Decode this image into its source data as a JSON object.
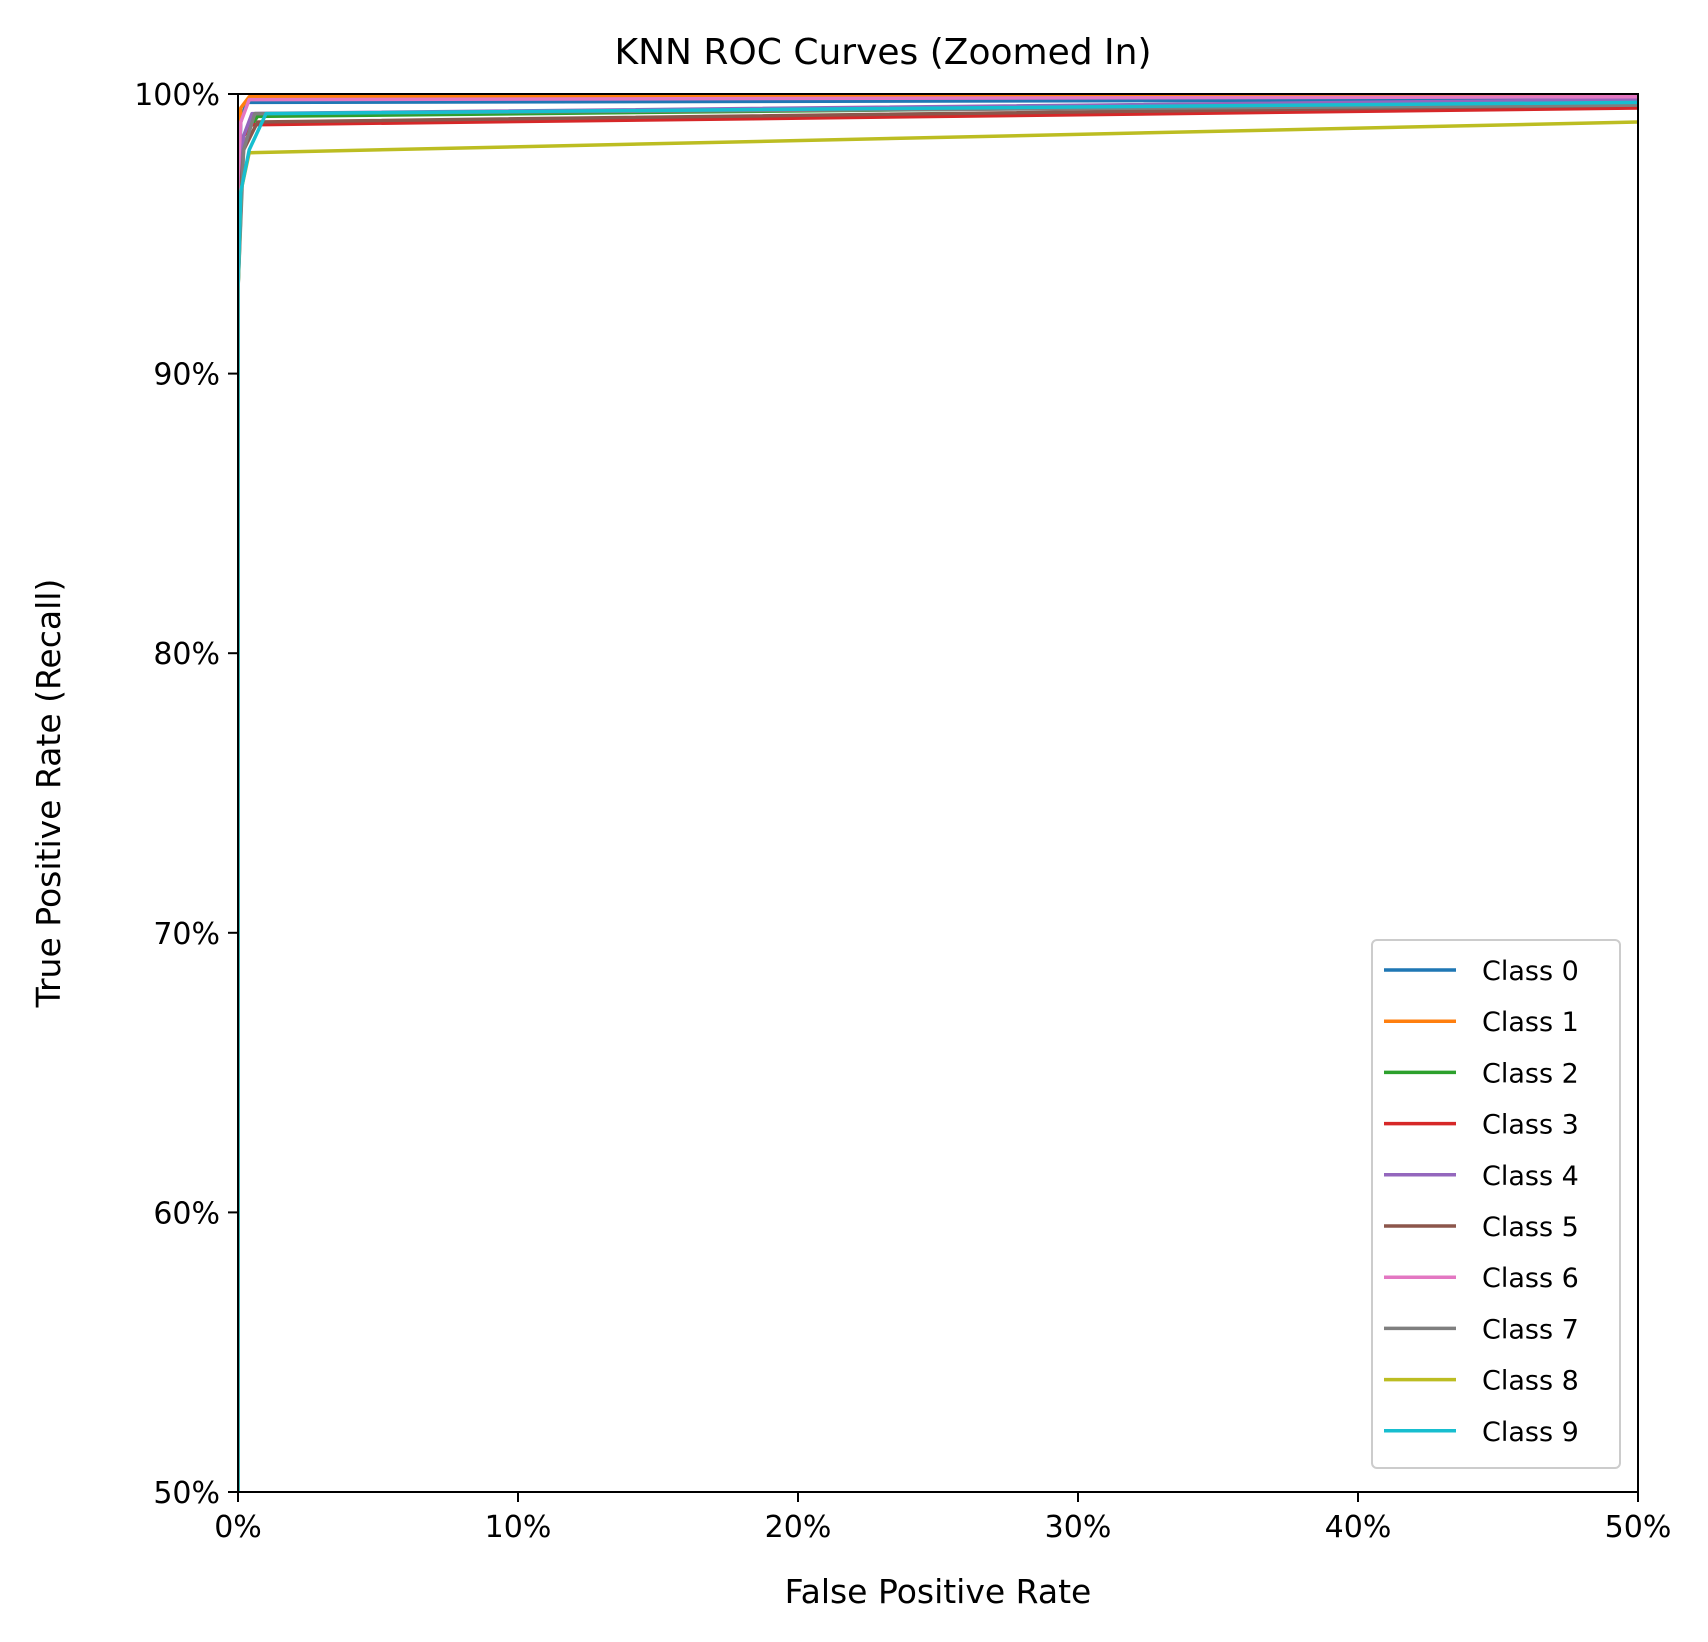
{
  "chart_data": {
    "type": "line",
    "title": "KNN ROC Curves (Zoomed In)",
    "xlabel": "False Positive Rate",
    "ylabel": "True Positive Rate (Recall)",
    "xlim": [
      0,
      0.5
    ],
    "ylim": [
      0.5,
      1.0
    ],
    "x_ticks": [
      0,
      0.1,
      0.2,
      0.3,
      0.4,
      0.5
    ],
    "x_tick_labels": [
      "0%",
      "10%",
      "20%",
      "30%",
      "40%",
      "50%"
    ],
    "y_ticks": [
      0.5,
      0.6,
      0.7,
      0.8,
      0.9,
      1.0
    ],
    "y_tick_labels": [
      "50%",
      "60%",
      "70%",
      "80%",
      "90%",
      "100%"
    ],
    "grid": false,
    "legend_position": "lower-right",
    "series": [
      {
        "name": "Class 0",
        "color": "#1f77b4",
        "x": [
          0,
          0.0,
          0.001,
          0.003,
          0.5
        ],
        "y": [
          0.5,
          0.96,
          0.99,
          0.997,
          0.998
        ]
      },
      {
        "name": "Class 1",
        "color": "#ff7f0e",
        "x": [
          0,
          0.0,
          0.001,
          0.004,
          0.5
        ],
        "y": [
          0.5,
          0.97,
          0.995,
          0.999,
          0.9995
        ]
      },
      {
        "name": "Class 2",
        "color": "#2ca02c",
        "x": [
          0,
          0.0,
          0.002,
          0.007,
          0.5
        ],
        "y": [
          0.5,
          0.93,
          0.985,
          0.992,
          0.997
        ]
      },
      {
        "name": "Class 3",
        "color": "#d62728",
        "x": [
          0,
          0.0,
          0.002,
          0.005,
          0.5
        ],
        "y": [
          0.5,
          0.94,
          0.985,
          0.989,
          0.995
        ]
      },
      {
        "name": "Class 4",
        "color": "#9467bd",
        "x": [
          0,
          0.0,
          0.002,
          0.005,
          0.5
        ],
        "y": [
          0.5,
          0.95,
          0.985,
          0.993,
          0.998
        ]
      },
      {
        "name": "Class 5",
        "color": "#8c564b",
        "x": [
          0,
          0.0,
          0.002,
          0.007,
          0.5
        ],
        "y": [
          0.5,
          0.95,
          0.98,
          0.99,
          0.996
        ]
      },
      {
        "name": "Class 6",
        "color": "#e377c2",
        "x": [
          0,
          0.0,
          0.001,
          0.004,
          0.5
        ],
        "y": [
          0.5,
          0.97,
          0.99,
          0.998,
          0.999
        ]
      },
      {
        "name": "Class 7",
        "color": "#7f7f7f",
        "x": [
          0,
          0.0,
          0.002,
          0.006,
          0.5
        ],
        "y": [
          0.5,
          0.93,
          0.98,
          0.993,
          0.996
        ]
      },
      {
        "name": "Class 8",
        "color": "#bcbd22",
        "x": [
          0,
          0.0,
          0.001,
          0.004,
          0.5
        ],
        "y": [
          0.5,
          0.93,
          0.965,
          0.979,
          0.99
        ]
      },
      {
        "name": "Class 9",
        "color": "#17becf",
        "x": [
          0,
          0.0,
          0.001,
          0.004,
          0.01,
          0.5
        ],
        "y": [
          0.5,
          0.93,
          0.965,
          0.98,
          0.993,
          0.997
        ]
      }
    ]
  }
}
